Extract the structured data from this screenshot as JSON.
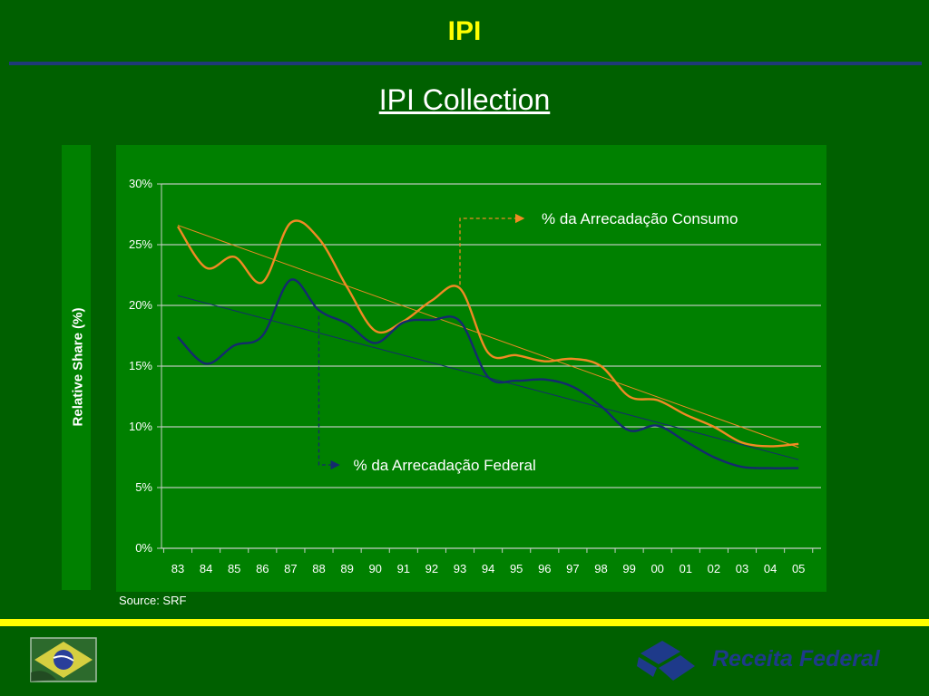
{
  "slide": {
    "title": "IPI",
    "heading": "IPI Collection",
    "source": "Source: SRF",
    "logo_text": "Receita Federal"
  },
  "colors": {
    "background": "#006000",
    "panel": "#008000",
    "title": "#ffff00",
    "rule": "#1f3a7a",
    "consumo": "#f08a24",
    "federal": "#142a6e",
    "logo": "#1e3a8a"
  },
  "chart_data": {
    "type": "line",
    "title": "IPI Collection",
    "xlabel": "",
    "ylabel": "Relative Share (%)",
    "ylim": [
      0,
      30
    ],
    "yticks": [
      "0%",
      "5%",
      "10%",
      "15%",
      "20%",
      "25%",
      "30%"
    ],
    "grid": true,
    "categories": [
      "83",
      "84",
      "85",
      "86",
      "87",
      "88",
      "89",
      "90",
      "91",
      "92",
      "93",
      "94",
      "95",
      "96",
      "97",
      "98",
      "99",
      "00",
      "01",
      "02",
      "03",
      "04",
      "05"
    ],
    "series": [
      {
        "name": "% da Arrecadação Consumo",
        "color": "#f08a24",
        "values": [
          26.5,
          23.1,
          24.0,
          21.9,
          26.8,
          25.5,
          21.5,
          17.9,
          18.7,
          20.4,
          21.4,
          16.1,
          15.9,
          15.4,
          15.6,
          15.0,
          12.5,
          12.2,
          11.0,
          10.0,
          8.7,
          8.4,
          8.6
        ],
        "trend": [
          26.6,
          8.3
        ]
      },
      {
        "name": "% da Arrecadação Federal",
        "color": "#142a6e",
        "values": [
          17.4,
          15.2,
          16.7,
          17.5,
          22.1,
          19.6,
          18.5,
          16.9,
          18.6,
          18.8,
          18.7,
          14.1,
          13.8,
          13.9,
          13.3,
          11.7,
          9.7,
          10.1,
          8.8,
          7.5,
          6.7,
          6.6,
          6.6
        ],
        "trend": [
          20.8,
          7.3
        ]
      }
    ],
    "annotations": [
      {
        "text": "% da Arrecadação Consumo",
        "series": 0,
        "at_category": "93"
      },
      {
        "text": "% da Arrecadação Federal",
        "series": 1,
        "at_category": "88"
      }
    ]
  }
}
